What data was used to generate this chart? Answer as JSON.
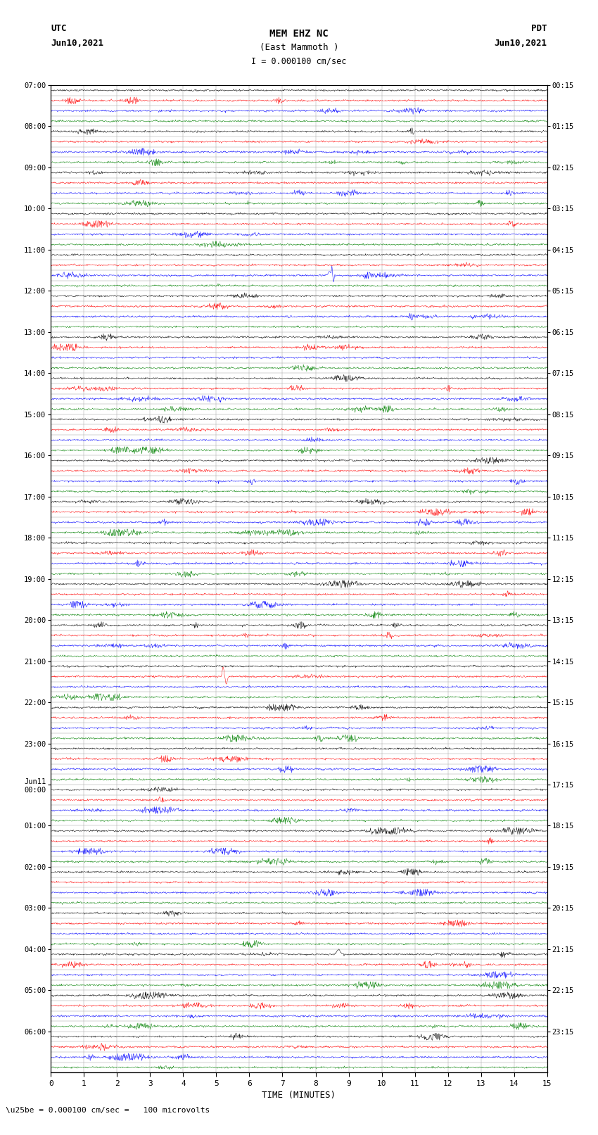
{
  "title_line1": "MEM EHZ NC",
  "title_line2": "(East Mammoth )",
  "scale_label": "I = 0.000100 cm/sec",
  "left_label_top": "UTC",
  "left_label_date": "Jun10,2021",
  "right_label_top": "PDT",
  "right_label_date": "Jun10,2021",
  "bottom_label": "TIME (MINUTES)",
  "footer_text": "\\u25be = 0.000100 cm/sec =   100 microvolts",
  "xlabel_ticks": [
    0,
    1,
    2,
    3,
    4,
    5,
    6,
    7,
    8,
    9,
    10,
    11,
    12,
    13,
    14,
    15
  ],
  "utc_times": [
    "07:00",
    "",
    "",
    "",
    "08:00",
    "",
    "",
    "",
    "09:00",
    "",
    "",
    "",
    "10:00",
    "",
    "",
    "",
    "11:00",
    "",
    "",
    "",
    "12:00",
    "",
    "",
    "",
    "13:00",
    "",
    "",
    "",
    "14:00",
    "",
    "",
    "",
    "15:00",
    "",
    "",
    "",
    "16:00",
    "",
    "",
    "",
    "17:00",
    "",
    "",
    "",
    "18:00",
    "",
    "",
    "",
    "19:00",
    "",
    "",
    "",
    "20:00",
    "",
    "",
    "",
    "21:00",
    "",
    "",
    "",
    "22:00",
    "",
    "",
    "",
    "23:00",
    "",
    "",
    "",
    "Jun11\n00:00",
    "",
    "",
    "",
    "01:00",
    "",
    "",
    "",
    "02:00",
    "",
    "",
    "",
    "03:00",
    "",
    "",
    "",
    "04:00",
    "",
    "",
    "",
    "05:00",
    "",
    "",
    "",
    "06:00",
    "",
    "",
    ""
  ],
  "pdt_times": [
    "00:15",
    "",
    "",
    "",
    "01:15",
    "",
    "",
    "",
    "02:15",
    "",
    "",
    "",
    "03:15",
    "",
    "",
    "",
    "04:15",
    "",
    "",
    "",
    "05:15",
    "",
    "",
    "",
    "06:15",
    "",
    "",
    "",
    "07:15",
    "",
    "",
    "",
    "08:15",
    "",
    "",
    "",
    "09:15",
    "",
    "",
    "",
    "10:15",
    "",
    "",
    "",
    "11:15",
    "",
    "",
    "",
    "12:15",
    "",
    "",
    "",
    "13:15",
    "",
    "",
    "",
    "14:15",
    "",
    "",
    "",
    "15:15",
    "",
    "",
    "",
    "16:15",
    "",
    "",
    "",
    "17:15",
    "",
    "",
    "",
    "18:15",
    "",
    "",
    "",
    "19:15",
    "",
    "",
    "",
    "20:15",
    "",
    "",
    "",
    "21:15",
    "",
    "",
    "",
    "22:15",
    "",
    "",
    "",
    "23:15",
    "",
    "",
    ""
  ],
  "trace_colors": [
    "black",
    "red",
    "blue",
    "green"
  ],
  "n_rows": 96,
  "n_minutes": 15,
  "bg_color": "white",
  "grid_color": "#999999",
  "trace_amplitude": 0.38,
  "spike_blue_row": 18,
  "spike_blue_t": 8.5,
  "spike_red_row": 57,
  "spike_red_t": 5.2,
  "spike_blue2_row": 81,
  "spike_blue2_t": 9.0,
  "spike_black_row": 84,
  "spike_black_t": 8.7
}
